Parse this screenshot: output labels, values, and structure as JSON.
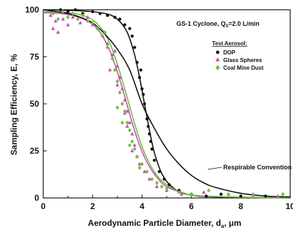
{
  "chart_data": {
    "type": "scatter",
    "title": "",
    "annotation_title": "GS-1 Cyclone, Q",
    "annotation_title_sub": "S",
    "annotation_title_tail": "=2.0 L/min",
    "xlabel": "Aerodynamic Particle Diameter, d",
    "xlabel_sub": "a",
    "xlabel_tail": ", μm",
    "ylabel": "Sampling Efficiency, E, %",
    "xlim": [
      0,
      10
    ],
    "ylim": [
      0,
      100
    ],
    "xticks": [
      "0",
      "2",
      "4",
      "6",
      "8",
      "10"
    ],
    "yticks": [
      "0",
      "25",
      "50",
      "75",
      "100"
    ],
    "legend_title": "Test Aerosol:",
    "legend_position": "top-right",
    "curve_label": "Respirable Convention",
    "series": [
      {
        "name": "DOP",
        "color": "#111111",
        "marker": "circle",
        "points": [
          [
            0.7,
            100
          ],
          [
            1.0,
            99
          ],
          [
            1.3,
            100
          ],
          [
            1.6,
            98
          ],
          [
            2.0,
            99
          ],
          [
            2.3,
            98
          ],
          [
            2.6,
            97
          ],
          [
            2.9,
            96
          ],
          [
            3.1,
            95
          ],
          [
            3.3,
            92
          ],
          [
            3.5,
            90
          ],
          [
            3.6,
            86
          ],
          [
            3.7,
            80
          ],
          [
            3.8,
            72
          ],
          [
            3.9,
            64
          ],
          [
            4.0,
            58
          ],
          [
            4.1,
            50
          ],
          [
            4.2,
            42
          ],
          [
            4.3,
            34
          ],
          [
            4.4,
            26
          ],
          [
            4.5,
            20
          ],
          [
            4.7,
            14
          ],
          [
            4.9,
            10
          ],
          [
            5.1,
            7
          ],
          [
            5.5,
            4
          ],
          [
            6.0,
            2
          ],
          [
            6.6,
            1
          ],
          [
            7.2,
            2
          ],
          [
            8.0,
            1
          ],
          [
            9.0,
            1
          ],
          [
            3.95,
            68
          ],
          [
            4.05,
            55
          ],
          [
            4.25,
            38
          ],
          [
            4.35,
            30
          ]
        ]
      },
      {
        "name": "Glass Spheres",
        "color": "#c94db4",
        "marker": "triangle",
        "points": [
          [
            0.3,
            97
          ],
          [
            0.4,
            90
          ],
          [
            0.5,
            94
          ],
          [
            0.6,
            88
          ],
          [
            0.8,
            95
          ],
          [
            1.0,
            92
          ],
          [
            1.2,
            96
          ],
          [
            1.5,
            93
          ],
          [
            1.8,
            96
          ],
          [
            2.0,
            92
          ],
          [
            2.2,
            90
          ],
          [
            2.4,
            86
          ],
          [
            2.6,
            82
          ],
          [
            2.8,
            76
          ],
          [
            3.0,
            70
          ],
          [
            3.1,
            64
          ],
          [
            3.2,
            58
          ],
          [
            3.3,
            52
          ],
          [
            3.4,
            46
          ],
          [
            3.5,
            40
          ],
          [
            3.6,
            34
          ],
          [
            3.7,
            28
          ],
          [
            3.8,
            22
          ],
          [
            3.9,
            18
          ],
          [
            4.1,
            14
          ],
          [
            4.3,
            10
          ],
          [
            4.6,
            6
          ],
          [
            5.0,
            4
          ],
          [
            5.6,
            2
          ],
          [
            6.5,
            3
          ],
          [
            7.5,
            2
          ],
          [
            8.5,
            2
          ],
          [
            9.5,
            1
          ],
          [
            2.7,
            68
          ],
          [
            3.0,
            60
          ],
          [
            3.3,
            45
          ],
          [
            3.6,
            25
          ],
          [
            3.4,
            38
          ],
          [
            2.9,
            78
          ]
        ]
      },
      {
        "name": "Coal Mine Dust",
        "color": "#6cc13f",
        "marker": "diamond",
        "points": [
          [
            0.4,
            98
          ],
          [
            0.6,
            95
          ],
          [
            0.8,
            99
          ],
          [
            1.0,
            96
          ],
          [
            1.2,
            98
          ],
          [
            1.4,
            95
          ],
          [
            1.6,
            97
          ],
          [
            1.8,
            94
          ],
          [
            2.0,
            93
          ],
          [
            2.2,
            90
          ],
          [
            2.4,
            86
          ],
          [
            2.6,
            80
          ],
          [
            2.8,
            74
          ],
          [
            2.9,
            68
          ],
          [
            3.0,
            62
          ],
          [
            3.1,
            56
          ],
          [
            3.2,
            50
          ],
          [
            3.3,
            46
          ],
          [
            3.4,
            40
          ],
          [
            3.5,
            36
          ],
          [
            3.6,
            30
          ],
          [
            3.7,
            26
          ],
          [
            3.8,
            22
          ],
          [
            4.0,
            18
          ],
          [
            4.2,
            14
          ],
          [
            4.4,
            10
          ],
          [
            4.6,
            8
          ],
          [
            4.8,
            6
          ],
          [
            5.0,
            5
          ],
          [
            5.5,
            3
          ],
          [
            6.0,
            2
          ],
          [
            6.7,
            4
          ],
          [
            7.5,
            2
          ],
          [
            8.5,
            1
          ],
          [
            9.7,
            2
          ],
          [
            2.5,
            88
          ],
          [
            3.0,
            48
          ],
          [
            3.2,
            40
          ],
          [
            3.5,
            28
          ],
          [
            3.9,
            16
          ]
        ]
      }
    ],
    "curves": [
      {
        "name": "DOP fit",
        "color": "#111111",
        "points": [
          [
            0,
            100
          ],
          [
            1.5,
            99.5
          ],
          [
            2.5,
            98
          ],
          [
            3.0,
            95
          ],
          [
            3.4,
            88
          ],
          [
            3.7,
            76
          ],
          [
            3.9,
            64
          ],
          [
            4.1,
            50
          ],
          [
            4.3,
            36
          ],
          [
            4.5,
            24
          ],
          [
            4.8,
            13
          ],
          [
            5.2,
            6
          ],
          [
            5.8,
            2
          ],
          [
            7,
            0.5
          ],
          [
            10,
            0
          ]
        ]
      },
      {
        "name": "Glass Spheres fit",
        "color": "#c94db4",
        "points": [
          [
            0,
            98.5
          ],
          [
            1.0,
            97.5
          ],
          [
            1.8,
            94
          ],
          [
            2.3,
            88
          ],
          [
            2.7,
            78
          ],
          [
            3.0,
            67
          ],
          [
            3.3,
            54
          ],
          [
            3.6,
            40
          ],
          [
            3.9,
            28
          ],
          [
            4.2,
            19
          ],
          [
            4.6,
            11
          ],
          [
            5.0,
            6
          ],
          [
            5.6,
            3
          ],
          [
            6.5,
            1
          ],
          [
            10,
            0
          ]
        ]
      },
      {
        "name": "Coal Mine Dust fit",
        "color": "#6cc13f",
        "points": [
          [
            0,
            99
          ],
          [
            1.0,
            98.5
          ],
          [
            1.8,
            96
          ],
          [
            2.3,
            91
          ],
          [
            2.7,
            82
          ],
          [
            3.0,
            71
          ],
          [
            3.3,
            58
          ],
          [
            3.6,
            44
          ],
          [
            3.9,
            31
          ],
          [
            4.2,
            21
          ],
          [
            4.6,
            12
          ],
          [
            5.0,
            7
          ],
          [
            5.6,
            3
          ],
          [
            6.5,
            1
          ],
          [
            10,
            0
          ]
        ]
      },
      {
        "name": "Respirable Convention",
        "color": "#111111",
        "points": [
          [
            0,
            100
          ],
          [
            1.0,
            98
          ],
          [
            1.5,
            96
          ],
          [
            2.0,
            93
          ],
          [
            2.5,
            87
          ],
          [
            3.0,
            79
          ],
          [
            3.5,
            68
          ],
          [
            4.0,
            50
          ],
          [
            4.5,
            37
          ],
          [
            5.0,
            26
          ],
          [
            5.5,
            18
          ],
          [
            6.0,
            12
          ],
          [
            6.5,
            8
          ],
          [
            7.0,
            5.5
          ],
          [
            8.0,
            2.5
          ],
          [
            9.0,
            1
          ],
          [
            10,
            0.5
          ]
        ]
      }
    ]
  }
}
